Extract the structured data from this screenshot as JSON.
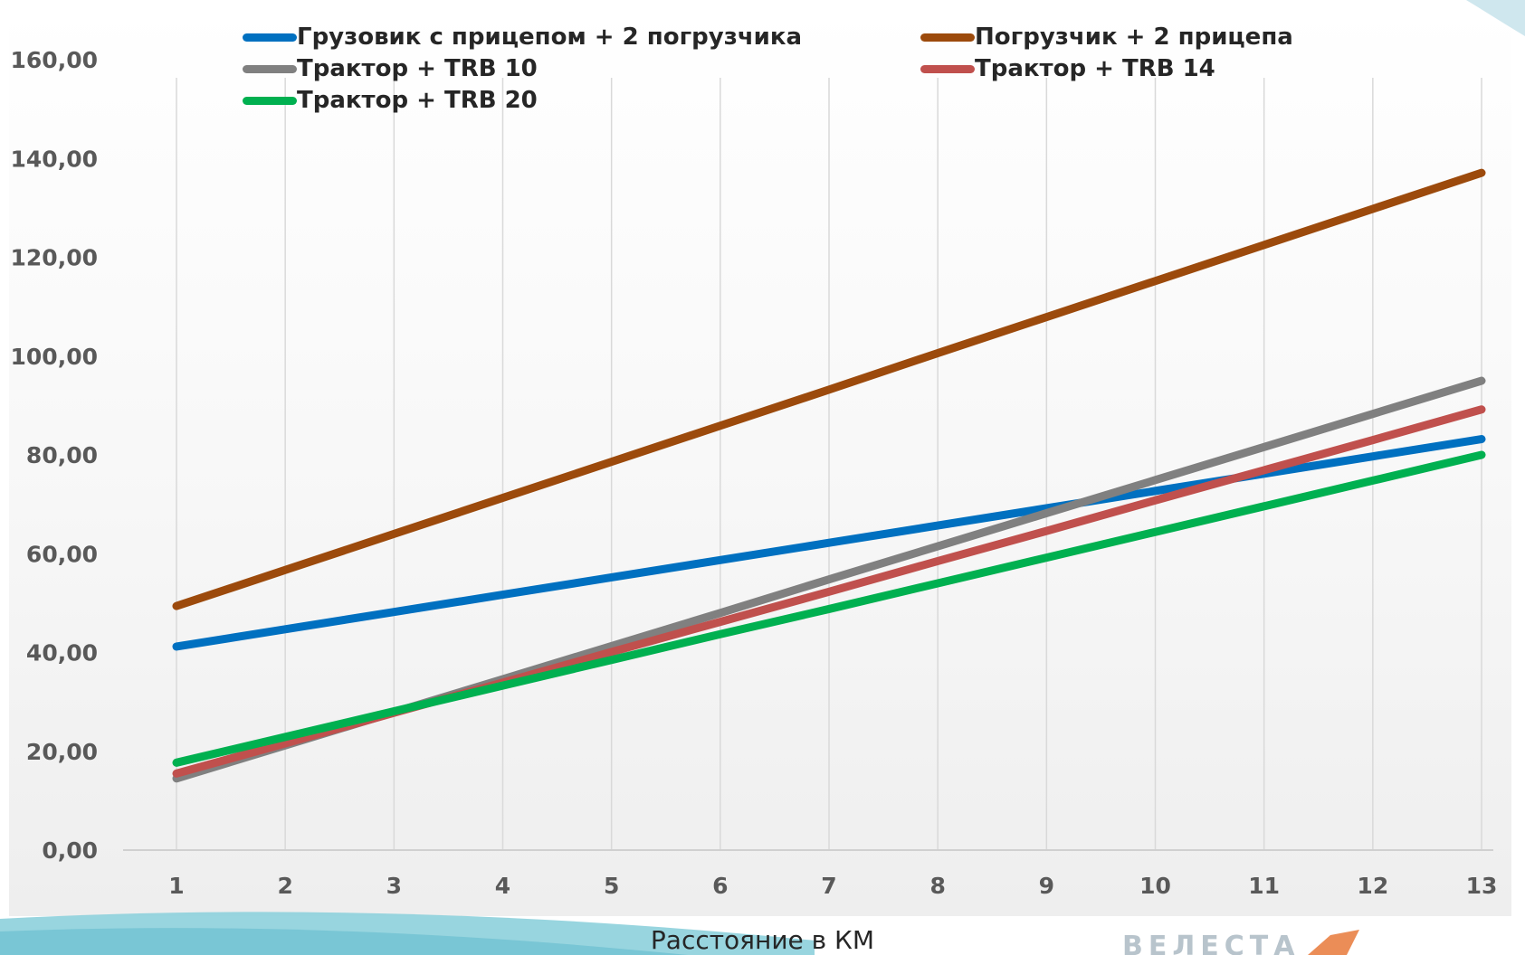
{
  "chart_data": {
    "type": "line",
    "xlabel": "Расстояние в КМ",
    "ylabel": "",
    "title": "",
    "x": [
      1,
      2,
      3,
      4,
      5,
      6,
      7,
      8,
      9,
      10,
      11,
      12,
      13
    ],
    "ylim": [
      0,
      160
    ],
    "yticks": [
      "0,00",
      "20,00",
      "40,00",
      "60,00",
      "80,00",
      "100,00",
      "120,00",
      "140,00",
      "160,00"
    ],
    "ytick_values": [
      0,
      20,
      40,
      60,
      80,
      100,
      120,
      140,
      160
    ],
    "grid": "vertical",
    "legend_position": "top",
    "series": [
      {
        "name": "Грузовик с прицепом + 2 погрузчика",
        "color": "#0070C0",
        "values": [
          41.2,
          44.7,
          48.2,
          51.7,
          55.2,
          58.7,
          62.2,
          65.7,
          69.2,
          72.7,
          76.2,
          79.7,
          83.2
        ]
      },
      {
        "name": "Погрузчик + 2 прицепа",
        "color": "#9C4A0C",
        "values": [
          49.4,
          56.7,
          64.0,
          71.3,
          78.6,
          85.9,
          93.2,
          100.6,
          107.9,
          115.2,
          122.5,
          129.8,
          137.1
        ]
      },
      {
        "name": "Трактор + TRB 10",
        "color": "#808080",
        "values": [
          14.5,
          21.2,
          27.9,
          34.6,
          41.3,
          48.0,
          54.8,
          61.5,
          68.2,
          74.9,
          81.6,
          88.3,
          95.0
        ]
      },
      {
        "name": "Трактор + TRB 14",
        "color": "#C0504D",
        "values": [
          15.5,
          21.6,
          27.8,
          33.9,
          40.1,
          46.2,
          52.3,
          58.5,
          64.6,
          70.8,
          76.9,
          83.0,
          89.2
        ]
      },
      {
        "name": "Трактор + TRB 20",
        "color": "#00B050",
        "values": [
          17.7,
          22.9,
          28.1,
          33.3,
          38.5,
          43.7,
          48.8,
          54.0,
          59.2,
          64.4,
          69.6,
          74.8,
          80.0
        ]
      }
    ]
  },
  "legend": {
    "items": [
      {
        "label": "Грузовик с прицепом + 2 погрузчика",
        "color": "#0070C0"
      },
      {
        "label": "Погрузчик + 2 прицепа",
        "color": "#9C4A0C"
      },
      {
        "label": "Трактор + TRB 10",
        "color": "#808080"
      },
      {
        "label": "Трактор + TRB 14",
        "color": "#C0504D"
      },
      {
        "label": "Трактор + TRB 20",
        "color": "#00B050"
      }
    ]
  },
  "background": {
    "wave_color": "#7EC8D8",
    "frame_color": "#CFE4EA"
  }
}
